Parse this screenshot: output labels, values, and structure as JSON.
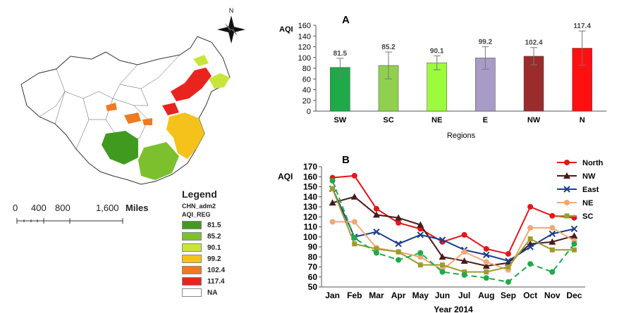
{
  "map": {
    "north_label": "N",
    "scale_bar": {
      "ticks": [
        "0",
        "400",
        "800",
        "1,600"
      ],
      "unit": "Miles"
    },
    "legend": {
      "title": "Legend",
      "layer": "CHN_adm2",
      "field": "AQI_REG",
      "items": [
        {
          "label": "81.5",
          "color": "#3f9a1f"
        },
        {
          "label": "85.2",
          "color": "#7cc02e"
        },
        {
          "label": "90.1",
          "color": "#c8e63a"
        },
        {
          "label": "99.2",
          "color": "#f5c21b"
        },
        {
          "label": "102.4",
          "color": "#f07a22"
        },
        {
          "label": "117.4",
          "color": "#e8241f"
        },
        {
          "label": "NA",
          "color": "#ffffff"
        }
      ]
    }
  },
  "chart_data": [
    {
      "type": "bar",
      "panel_label": "A",
      "ylabel": "AQI",
      "xlabel": "Regions",
      "categories": [
        "SW",
        "SC",
        "NE",
        "E",
        "NW",
        "N"
      ],
      "values": [
        81.5,
        85.2,
        90.1,
        99.2,
        102.4,
        117.4
      ],
      "value_labels": [
        "81.5",
        "85.2",
        "90.1",
        "99.2",
        "102.4",
        "117.4"
      ],
      "errors": [
        17,
        25,
        13,
        21,
        16,
        32
      ],
      "colors": [
        "#1faa4a",
        "#8fd14f",
        "#9bfb3c",
        "#a99bc8",
        "#9b2c2c",
        "#ff1010"
      ],
      "ylim": [
        0,
        160
      ],
      "yticks": [
        "0",
        "20",
        "40",
        "60",
        "80",
        "100",
        "120",
        "140",
        "160"
      ]
    },
    {
      "type": "line",
      "panel_label": "B",
      "ylabel": "AQI",
      "xlabel": "Year 2014",
      "categories": [
        "Jan",
        "Feb",
        "Mar",
        "Apr",
        "May",
        "Jun",
        "Jul",
        "Aug",
        "Sep",
        "Oct",
        "Nov",
        "Dec"
      ],
      "ylim": [
        50,
        170
      ],
      "yticks": [
        "50",
        "60",
        "70",
        "80",
        "90",
        "100",
        "110",
        "120",
        "130",
        "140",
        "150",
        "160",
        "170"
      ],
      "series": [
        {
          "name": "North",
          "color": "#e8141b",
          "marker": "circle",
          "dash": "solid",
          "values": [
            159,
            161,
            128,
            114,
            108,
            95,
            102,
            88,
            83,
            130,
            121,
            119
          ]
        },
        {
          "name": "NW",
          "color": "#4a1a1a",
          "marker": "triangle",
          "dash": "solid",
          "values": [
            134,
            140,
            122,
            119,
            112,
            80,
            76,
            71,
            74,
            93,
            95,
            101
          ]
        },
        {
          "name": "East",
          "color": "#1a3f8a",
          "marker": "x",
          "dash": "solid",
          "values": [
            148,
            100,
            105,
            93,
            102,
            97,
            87,
            82,
            76,
            90,
            103,
            108
          ]
        },
        {
          "name": "NE",
          "color": "#f0a878",
          "marker": "circle",
          "dash": "solid",
          "values": [
            115,
            115,
            89,
            85,
            80,
            67,
            85,
            75,
            67,
            109,
            109,
            96
          ]
        },
        {
          "name": "SC",
          "color": "#9c9c2c",
          "marker": "square",
          "dash": "solid",
          "values": [
            148,
            93,
            88,
            85,
            72,
            72,
            65,
            65,
            70,
            98,
            87,
            87
          ]
        },
        {
          "color": "#1faa4a",
          "marker": "circle",
          "dash": "dashed",
          "values": [
            156,
            99,
            84,
            77,
            84,
            65,
            62,
            59,
            55,
            73,
            65,
            93
          ]
        }
      ]
    }
  ]
}
